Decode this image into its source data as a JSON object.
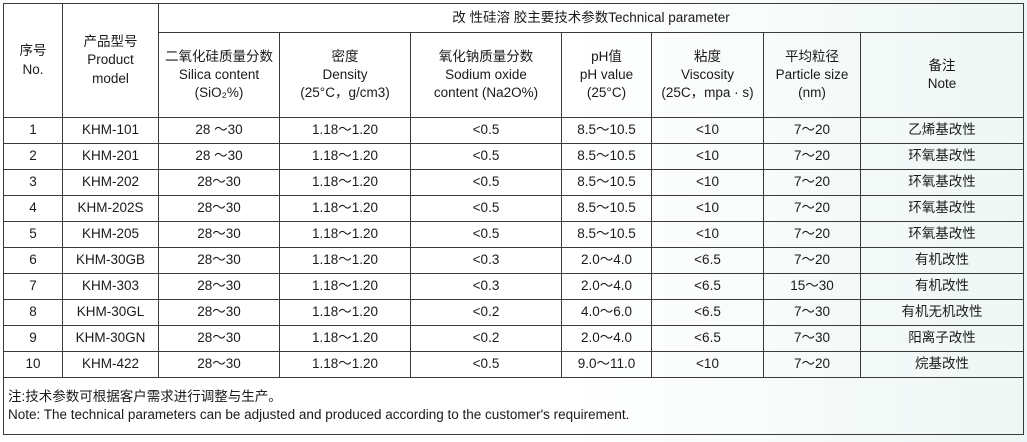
{
  "title": "改 性硅溶 胶主要技术参数Technical parameter",
  "headers": {
    "no": [
      "序号",
      "No."
    ],
    "model": [
      "产品型号",
      "Product",
      "model"
    ],
    "silica": [
      "二氧化硅质量分数",
      "Silica content",
      "(SiO₂%)"
    ],
    "density": [
      "密度",
      "Density",
      "(25°C，g/cm3)"
    ],
    "sodium": [
      "氧化钠质量分数",
      "Sodium oxide",
      "content (Na2O%)"
    ],
    "ph": [
      "pH值",
      "pH value",
      "(25°C)"
    ],
    "viscosity": [
      "粘度",
      "Viscosity",
      "(25C，mpa · s)"
    ],
    "particle": [
      "平均粒径",
      "Particle size",
      "(nm)"
    ],
    "note": [
      "备注",
      "Note"
    ]
  },
  "rows": [
    {
      "no": "1",
      "model": "KHM-101",
      "silica": "28 ～30",
      "density": "1.18～1.20",
      "sodium": "<0.5",
      "ph": "8.5～10.5",
      "viscosity": "<10",
      "particle": "7～20",
      "note": "乙烯基改性"
    },
    {
      "no": "2",
      "model": "KHM-201",
      "silica": "28 ～30",
      "density": "1.18～1.20",
      "sodium": "<0.5",
      "ph": "8.5～10.5",
      "viscosity": "<10",
      "particle": "7～20",
      "note": "环氧基改性"
    },
    {
      "no": "3",
      "model": "KHM-202",
      "silica": "28～30",
      "density": "1.18～1.20",
      "sodium": "<0.5",
      "ph": "8.5～10.5",
      "viscosity": "<10",
      "particle": "7～20",
      "note": "环氧基改性"
    },
    {
      "no": "4",
      "model": "KHM-202S",
      "silica": "28～30",
      "density": "1.18～1.20",
      "sodium": "<0.5",
      "ph": "8.5～10.5",
      "viscosity": "<10",
      "particle": "7～20",
      "note": "环氧基改性"
    },
    {
      "no": "5",
      "model": "KHM-205",
      "silica": "28～30",
      "density": "1.18～1.20",
      "sodium": "<0.5",
      "ph": "8.5～10.5",
      "viscosity": "<10",
      "particle": "7～20",
      "note": "环氧基改性"
    },
    {
      "no": "6",
      "model": "KHM-30GB",
      "silica": "28～30",
      "density": "1.18～1.20",
      "sodium": "<0.3",
      "ph": "2.0～4.0",
      "viscosity": "<6.5",
      "particle": "7～20",
      "note": "有机改性"
    },
    {
      "no": "7",
      "model": "KHM-303",
      "silica": "28～30",
      "density": "1.18～1.20",
      "sodium": "<0.3",
      "ph": "2.0～4.0",
      "viscosity": "<6.5",
      "particle": "15～30",
      "note": "有机改性"
    },
    {
      "no": "8",
      "model": "KHM-30GL",
      "silica": "28～30",
      "density": "1.18～1.20",
      "sodium": "<0.2",
      "ph": "4.0～6.0",
      "viscosity": "<6.5",
      "particle": "7～30",
      "note": "有机无机改性"
    },
    {
      "no": "9",
      "model": "KHM-30GN",
      "silica": "28～30",
      "density": "1.18～1.20",
      "sodium": "<0.2",
      "ph": "2.0～4.0",
      "viscosity": "<6.5",
      "particle": "7～30",
      "note": "阳离子改性"
    },
    {
      "no": "10",
      "model": "KHM-422",
      "silica": "28～30",
      "density": "1.18～1.20",
      "sodium": "<0.5",
      "ph": "9.0～11.0",
      "viscosity": "<10",
      "particle": "7～20",
      "note": "烷基改性"
    }
  ],
  "notes": {
    "cn": "注:技术参数可根据客户需求进行调整与生产。",
    "en": "Note: The technical parameters can be adjusted and produced according to the customer's requirement."
  }
}
